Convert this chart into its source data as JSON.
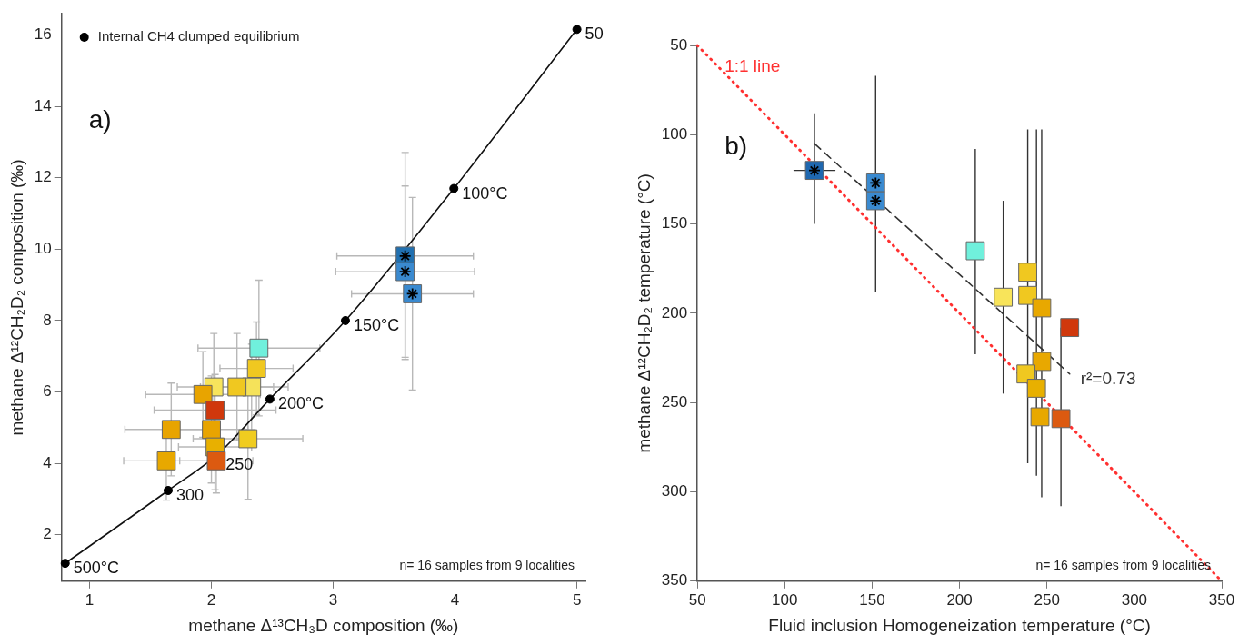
{
  "chart_data": [
    {
      "type": "scatter",
      "xlabel": "methane Δ¹³CH₃D composition (‰)",
      "ylabel": "methane Δ¹²CH₂D₂ composition (‰)",
      "xlim": [
        0.77,
        5.07
      ],
      "ylim": [
        0.7,
        16.6
      ],
      "xticks": [
        1,
        2,
        3,
        4,
        5
      ],
      "yticks": [
        2,
        4,
        6,
        8,
        10,
        12,
        14,
        16
      ],
      "grid": false,
      "legend": "top left",
      "series": [
        {
          "type": "line",
          "marker": "none",
          "line_style": "solid",
          "color": "#111111",
          "x": [
            0.8,
            1.645,
            2.05,
            2.48,
            3.1,
            3.99,
            5.0
          ],
          "values": [
            1.2,
            3.24,
            4.25,
            5.8,
            8.0,
            11.7,
            16.16
          ]
        },
        {
          "type": "scatter",
          "name": "Internal CH4 clumped equilibrium",
          "marker": "circle",
          "color": "#000000",
          "x": [
            0.8,
            1.645,
            2.48,
            3.1,
            3.99,
            5.0
          ],
          "values": [
            1.2,
            3.24,
            5.8,
            8.0,
            11.7,
            16.16
          ]
        },
        {
          "type": "scatter",
          "marker": "square",
          "color": "#e8a800",
          "x": [
            2.39,
            2.37,
            2.33,
            2.02,
            2.21,
            1.93,
            2.03,
            1.67,
            2.0,
            2.03,
            2.3,
            1.63,
            2.04,
            3.59,
            3.59,
            3.65
          ],
          "values": [
            7.23,
            6.66,
            6.14,
            6.14,
            6.14,
            5.93,
            5.49,
            4.95,
            4.95,
            4.46,
            4.69,
            4.07,
            4.07,
            9.81,
            9.37,
            8.75
          ],
          "colors": [
            "#70f0dc",
            "#f0c820",
            "#f5e25a",
            "#f7e45c",
            "#f0c820",
            "#e8a400",
            "#d0380c",
            "#e8a400",
            "#e8a400",
            "#e8b000",
            "#f0cc20",
            "#e8a800",
            "#dc5a10",
            "#2170b0",
            "#3a8ad0",
            "#3a8ad0"
          ],
          "errors": [
            1.9,
            1.3,
            1.2,
            1.5,
            1.5,
            1.2,
            1.0,
            1.3,
            1.5,
            1.2,
            1.7,
            1.1,
            0.9,
            2.9,
            2.4,
            2.7
          ],
          "xerrors": [
            0.5,
            0.3,
            0.3,
            0.3,
            0.3,
            0.47,
            0.5,
            0.38,
            0.3,
            0.3,
            0.45,
            0.35,
            0.3,
            0.56,
            0.57,
            0.5
          ]
        },
        {
          "type": "scatter",
          "marker": "cross",
          "color": "#000000",
          "x": [
            3.59,
            3.59,
            3.65
          ],
          "values": [
            9.81,
            9.37,
            8.75
          ]
        }
      ],
      "annotations": [
        "a)",
        "n= 16 samples from 9 localities",
        {
          "text": "500°C",
          "x": 0.8,
          "y": 1.2
        },
        {
          "text": "300",
          "x": 1.645,
          "y": 3.24
        },
        {
          "text": "250",
          "x": 2.05,
          "y": 4.1
        },
        {
          "text": "200°C",
          "x": 2.48,
          "y": 5.8
        },
        {
          "text": "150°C",
          "x": 3.1,
          "y": 8.0
        },
        {
          "text": "100°C",
          "x": 3.99,
          "y": 11.7
        },
        {
          "text": "50",
          "x": 5.0,
          "y": 16.16
        }
      ]
    },
    {
      "type": "scatter",
      "xlabel": "Fluid inclusion Homogeneization temperature (°C)",
      "ylabel": "methane Δ¹²CH₂D₂ temperature (°C)",
      "xlim": [
        50,
        350
      ],
      "ylim": [
        350,
        50
      ],
      "xticks": [
        50,
        100,
        150,
        200,
        250,
        300,
        350
      ],
      "yticks": [
        50,
        100,
        150,
        200,
        250,
        300,
        350
      ],
      "grid": false,
      "series": [
        {
          "type": "line",
          "name": "1:1 line",
          "marker": "none",
          "line_style": "dotted",
          "color": "#ff3030",
          "x": [
            50,
            350
          ],
          "values": [
            50,
            350
          ]
        },
        {
          "type": "line",
          "name": "r²=0.73",
          "marker": "none",
          "line_style": "dashed",
          "color": "#333333",
          "x": [
            117,
            263
          ],
          "values": [
            105,
            234
          ]
        },
        {
          "type": "scatter",
          "marker": "square",
          "color": "#e8a800",
          "x": [
            117,
            152,
            152,
            209,
            239,
            239,
            225,
            247,
            263,
            247,
            238,
            244,
            246,
            258
          ],
          "values": [
            120,
            127,
            137,
            165,
            177,
            190,
            191,
            197,
            208,
            227,
            234,
            242,
            258,
            259
          ],
          "colors": [
            "#1f68b0",
            "#3a8ad0",
            "#3a8ad0",
            "#70f0dc",
            "#f0c820",
            "#f0c820",
            "#f8e45a",
            "#e8a800",
            "#d0380c",
            "#e8a800",
            "#f0c820",
            "#e8b000",
            "#e8a800",
            "#dc5a10"
          ],
          "errors": [
            [
              88,
              150
            ],
            [
              67,
              188
            ],
            null,
            [
              108,
              223
            ],
            [
              97,
              284
            ],
            null,
            [
              137,
              245
            ],
            null,
            null,
            [
              97,
              303
            ],
            null,
            [
              97,
              291
            ],
            null,
            [
              208,
              308
            ]
          ],
          "xerrors": [
            12,
            null,
            null,
            null,
            null,
            null,
            null,
            null,
            null,
            null,
            null,
            null,
            null,
            null
          ]
        },
        {
          "type": "scatter",
          "marker": "cross",
          "color": "#000000",
          "x": [
            117,
            152,
            152
          ],
          "values": [
            120,
            127,
            137
          ]
        }
      ],
      "annotations": [
        "b)",
        "n= 16 samples from 9 localities"
      ]
    }
  ]
}
